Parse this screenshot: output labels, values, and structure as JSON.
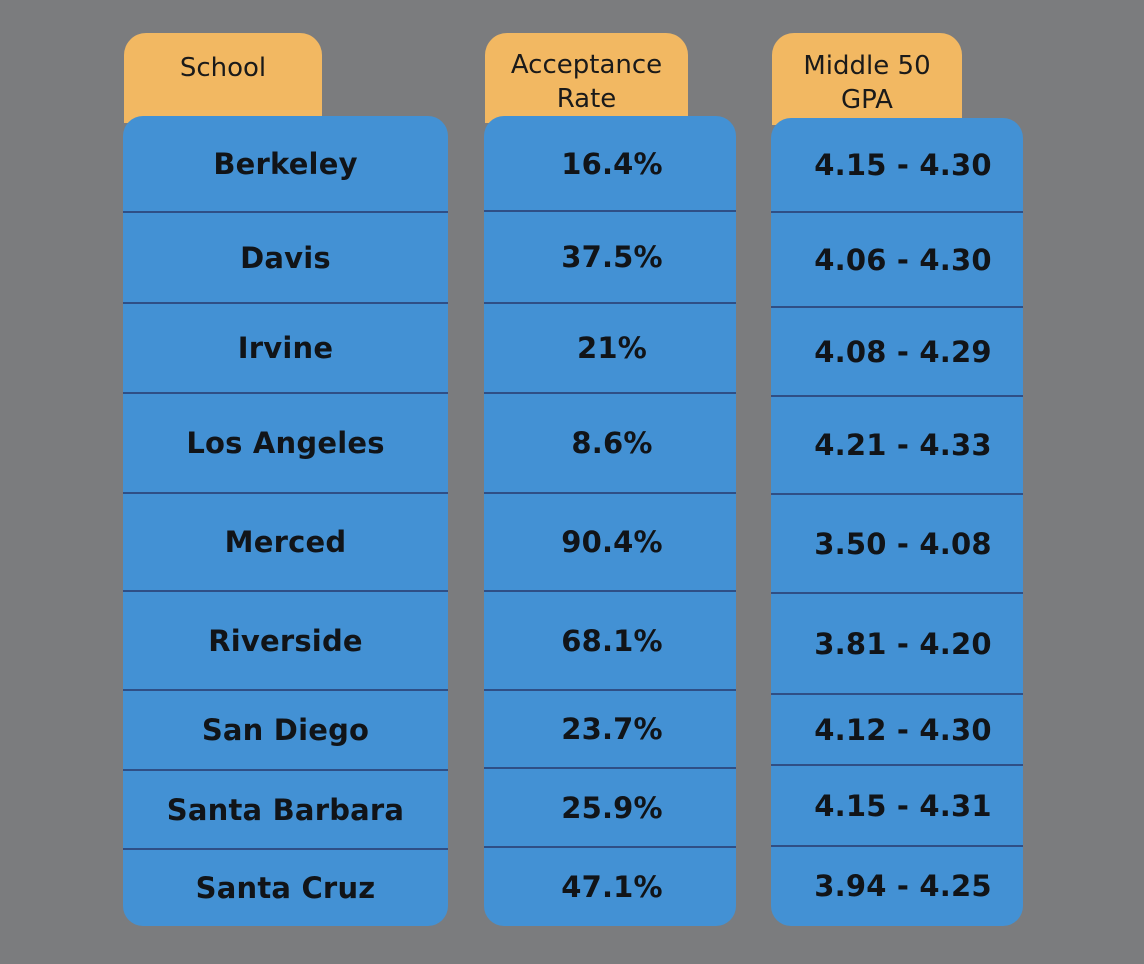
{
  "chart_data": {
    "type": "table",
    "columns": [
      "School",
      "Acceptance Rate",
      "Middle 50 GPA"
    ],
    "rows": [
      {
        "school": "Berkeley",
        "acceptance_rate": "16.4%",
        "gpa": "4.15 - 4.30"
      },
      {
        "school": "Davis",
        "acceptance_rate": "37.5%",
        "gpa": "4.06 - 4.30"
      },
      {
        "school": "Irvine",
        "acceptance_rate": "21%",
        "gpa": "4.08 - 4.29"
      },
      {
        "school": "Los Angeles",
        "acceptance_rate": "8.6%",
        "gpa": "4.21 - 4.33"
      },
      {
        "school": "Merced",
        "acceptance_rate": "90.4%",
        "gpa": "3.50 - 4.08"
      },
      {
        "school": "Riverside",
        "acceptance_rate": "68.1%",
        "gpa": "3.81 - 4.20"
      },
      {
        "school": "San Diego",
        "acceptance_rate": "23.7%",
        "gpa": "4.12 - 4.30"
      },
      {
        "school": "Santa Barbara",
        "acceptance_rate": "25.9%",
        "gpa": "4.15 - 4.31"
      },
      {
        "school": "Santa Cruz",
        "acceptance_rate": "47.1%",
        "gpa": "3.94 - 4.25"
      }
    ]
  },
  "headers": {
    "school": "School",
    "acceptance_line1": "Acceptance",
    "acceptance_line2": "Rate",
    "gpa_line1": "Middle 50",
    "gpa_line2": "GPA"
  },
  "colors": {
    "background": "#7b7c7e",
    "header_tab": "#f2b862",
    "column_fill": "#4391d4",
    "separator": "#2f4f86",
    "text": "#111418"
  }
}
